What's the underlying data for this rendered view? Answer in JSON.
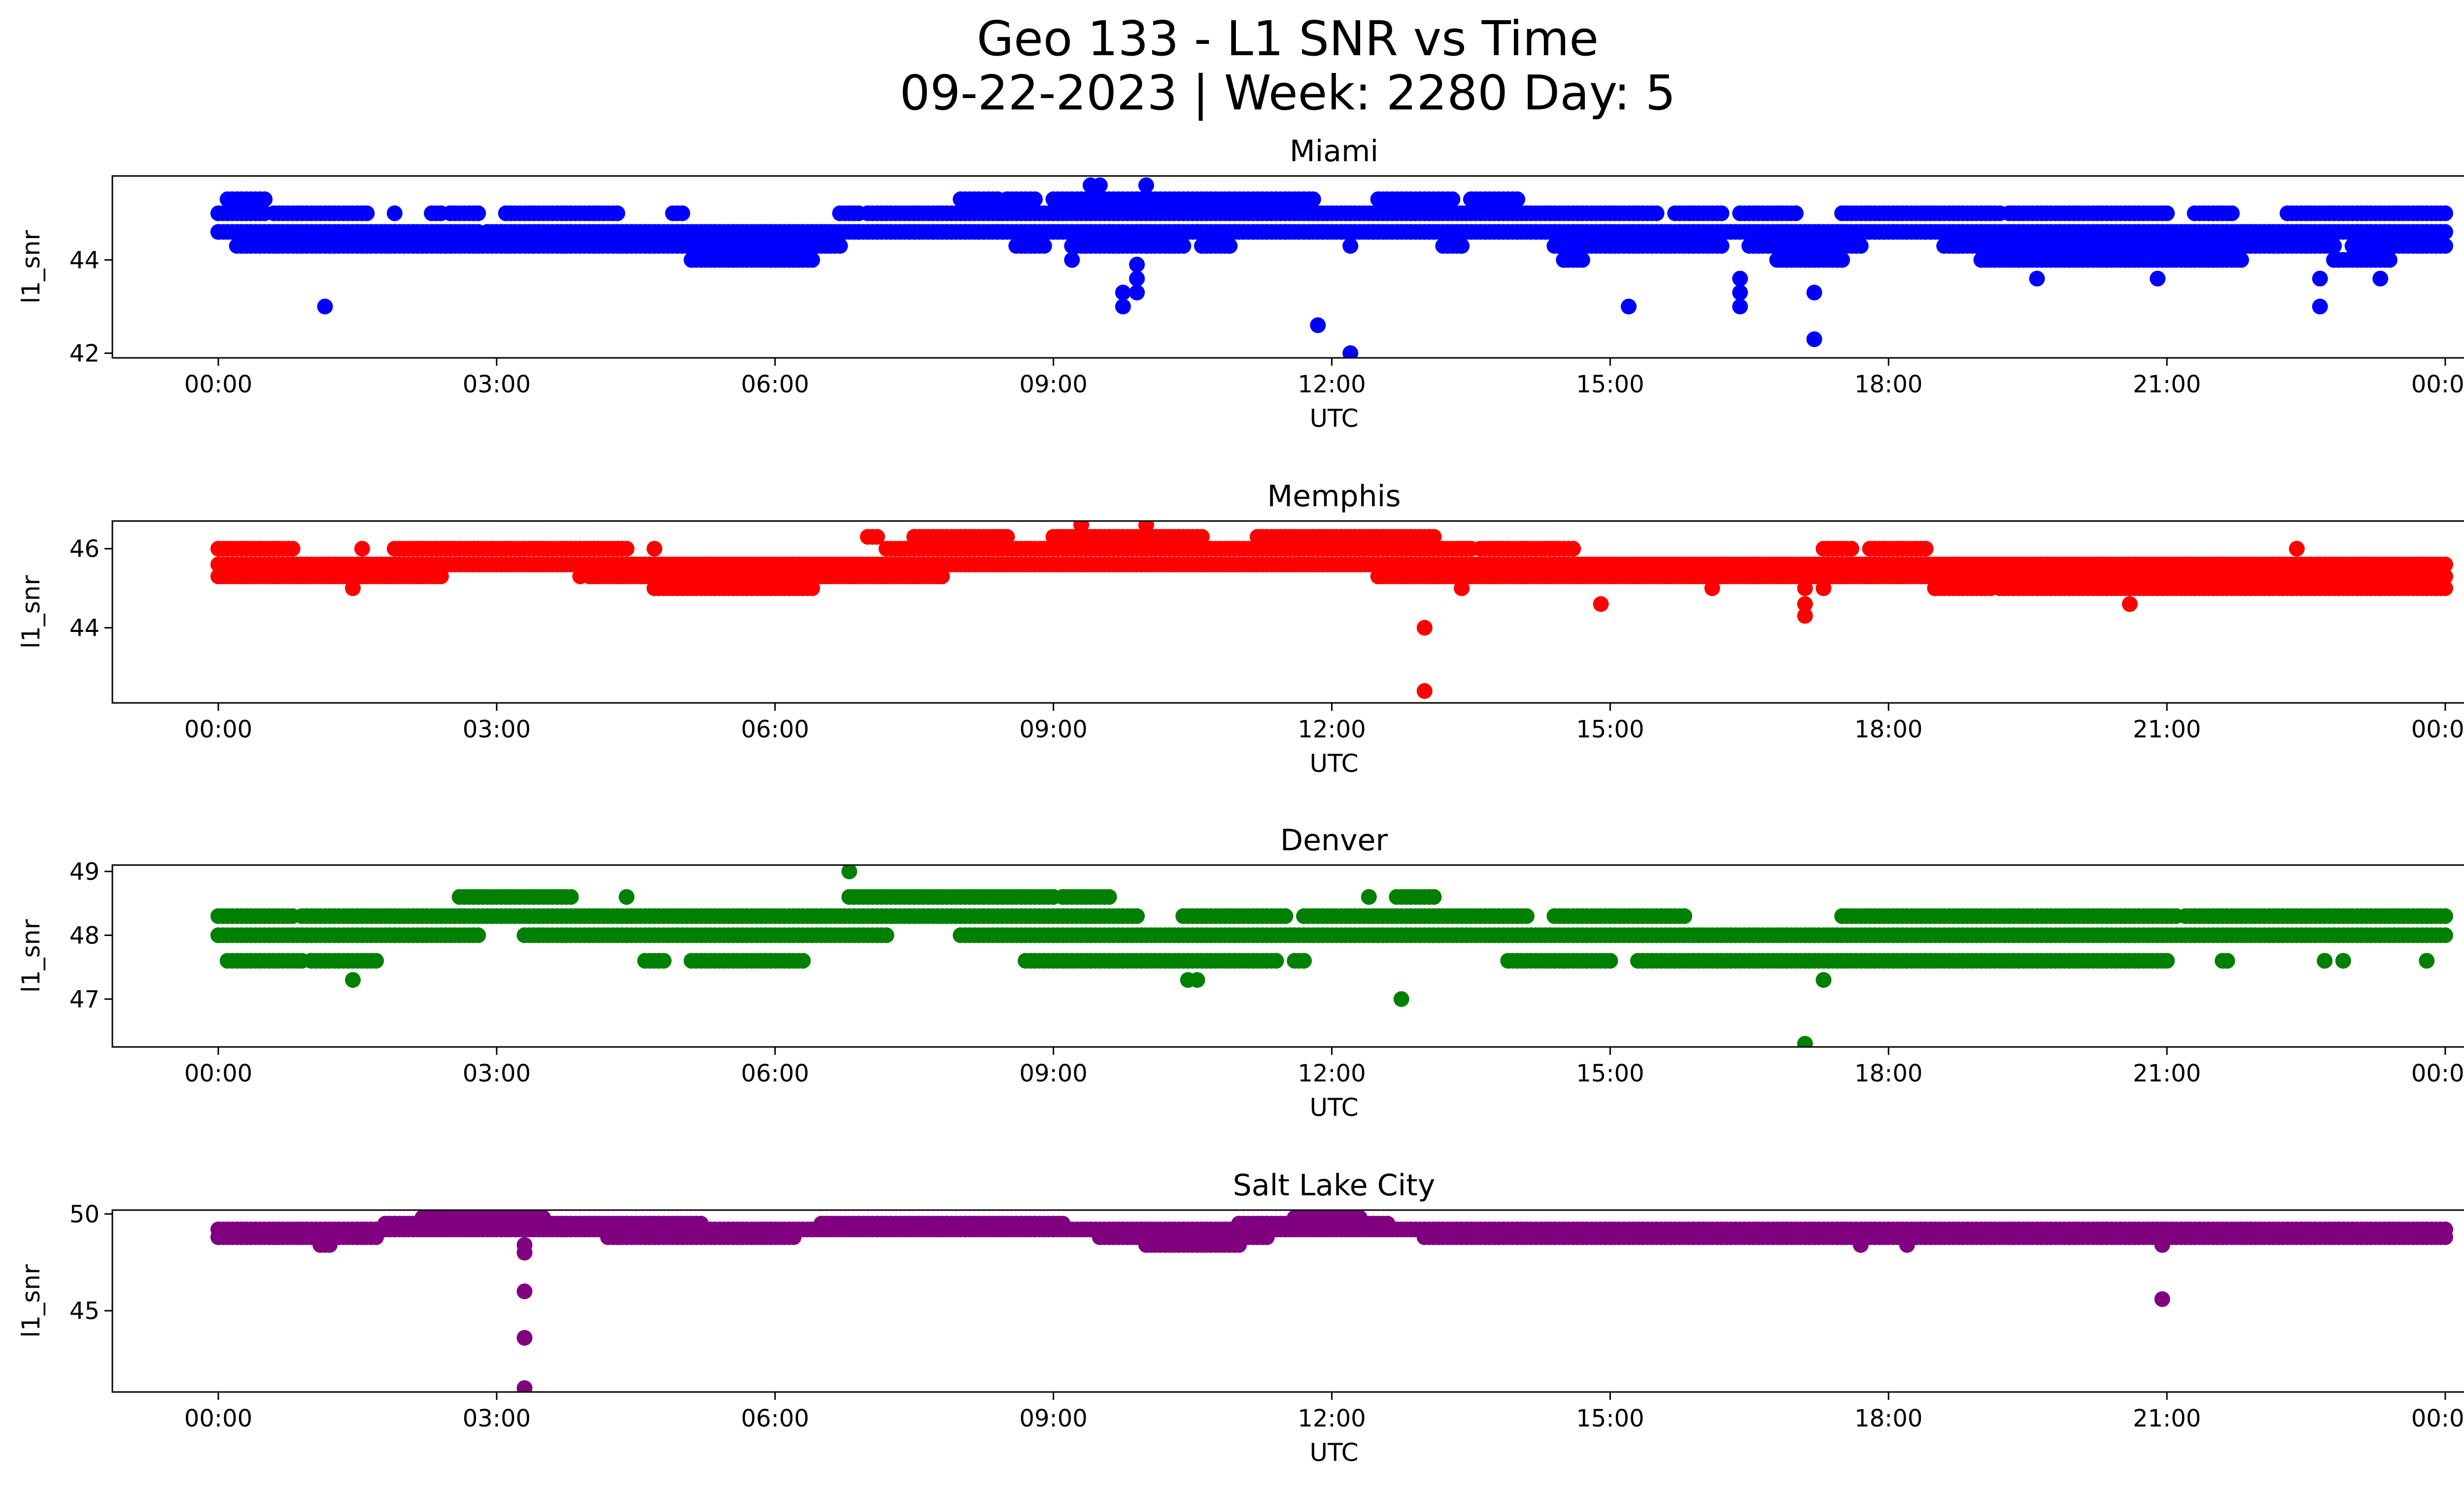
{
  "figure": {
    "title_line1": "Geo 133 - L1 SNR vs Time",
    "title_line2": "09-22-2023 | Week: 2280 Day: 5"
  },
  "chart_data": [
    {
      "type": "scatter",
      "title": "Miami",
      "xlabel": "UTC",
      "ylabel": "l1_snr",
      "color": "#0000ff",
      "x_unit": "hours (UTC)",
      "xlim": [
        0,
        24
      ],
      "ylim": [
        41.9,
        45.8
      ],
      "x_ticks": [
        "00:00",
        "03:00",
        "06:00",
        "09:00",
        "12:00",
        "15:00",
        "18:00",
        "21:00",
        "00:00"
      ],
      "y_ticks": [
        42,
        44
      ],
      "bands": [
        {
          "y": 45.0,
          "ranges": [
            [
              0.0,
              0.5
            ],
            [
              0.6,
              1.6
            ],
            [
              2.3,
              2.4
            ],
            [
              2.5,
              2.8
            ],
            [
              3.1,
              4.3
            ],
            [
              4.9,
              5.0
            ],
            [
              6.7,
              6.9
            ],
            [
              7.0,
              15.5
            ],
            [
              15.7,
              16.2
            ],
            [
              16.4,
              17.0
            ],
            [
              17.5,
              19.2
            ],
            [
              19.3,
              21.0
            ],
            [
              21.3,
              21.7
            ],
            [
              22.3,
              24.0
            ]
          ]
        },
        {
          "y": 44.6,
          "ranges": [
            [
              0.0,
              2.8
            ],
            [
              2.9,
              24.0
            ]
          ]
        },
        {
          "y": 44.3,
          "ranges": [
            [
              0.2,
              6.7
            ],
            [
              8.6,
              8.9
            ],
            [
              9.2,
              10.4
            ],
            [
              10.6,
              10.9
            ],
            [
              13.2,
              13.4
            ],
            [
              14.4,
              16.2
            ],
            [
              16.5,
              17.7
            ],
            [
              18.6,
              22.8
            ],
            [
              23.0,
              24.0
            ]
          ]
        },
        {
          "y": 44.0,
          "ranges": [
            [
              5.1,
              6.4
            ],
            [
              14.5,
              14.7
            ],
            [
              16.8,
              17.5
            ],
            [
              19.0,
              21.8
            ],
            [
              22.8,
              23.4
            ]
          ]
        },
        {
          "y": 45.3,
          "ranges": [
            [
              0.1,
              0.5
            ],
            [
              8.0,
              8.4
            ],
            [
              8.5,
              8.8
            ],
            [
              9.0,
              11.8
            ],
            [
              12.5,
              13.3
            ],
            [
              13.5,
              14.0
            ]
          ]
        }
      ],
      "points": [
        {
          "x": 1.15,
          "y": 43.0
        },
        {
          "x": 1.9,
          "y": 45.0
        },
        {
          "x": 9.2,
          "y": 44.0
        },
        {
          "x": 9.4,
          "y": 45.6
        },
        {
          "x": 9.5,
          "y": 45.6
        },
        {
          "x": 9.75,
          "y": 43.3
        },
        {
          "x": 9.75,
          "y": 43.0
        },
        {
          "x": 9.9,
          "y": 43.6
        },
        {
          "x": 9.9,
          "y": 43.3
        },
        {
          "x": 9.9,
          "y": 43.9
        },
        {
          "x": 10.0,
          "y": 45.6
        },
        {
          "x": 11.85,
          "y": 42.6
        },
        {
          "x": 12.2,
          "y": 42.0
        },
        {
          "x": 12.2,
          "y": 44.3
        },
        {
          "x": 15.2,
          "y": 43.0
        },
        {
          "x": 16.4,
          "y": 43.6
        },
        {
          "x": 16.4,
          "y": 43.3
        },
        {
          "x": 16.4,
          "y": 43.0
        },
        {
          "x": 17.2,
          "y": 42.3
        },
        {
          "x": 17.2,
          "y": 43.3
        },
        {
          "x": 19.6,
          "y": 43.6
        },
        {
          "x": 20.9,
          "y": 43.6
        },
        {
          "x": 22.65,
          "y": 43.6
        },
        {
          "x": 22.65,
          "y": 43.0
        },
        {
          "x": 23.3,
          "y": 43.6
        }
      ]
    },
    {
      "type": "scatter",
      "title": "Memphis",
      "xlabel": "UTC",
      "ylabel": "l1_snr",
      "color": "#ff0000",
      "x_unit": "hours (UTC)",
      "xlim": [
        0,
        24
      ],
      "ylim": [
        42.1,
        46.7
      ],
      "x_ticks": [
        "00:00",
        "03:00",
        "06:00",
        "09:00",
        "12:00",
        "15:00",
        "18:00",
        "21:00",
        "00:00"
      ],
      "y_ticks": [
        44,
        46
      ],
      "bands": [
        {
          "y": 45.6,
          "ranges": [
            [
              0.0,
              24.0
            ]
          ]
        },
        {
          "y": 45.3,
          "ranges": [
            [
              0.0,
              2.4
            ],
            [
              4.0,
              7.8
            ],
            [
              12.5,
              24.0
            ]
          ]
        },
        {
          "y": 46.0,
          "ranges": [
            [
              0.0,
              0.8
            ],
            [
              1.9,
              4.4
            ],
            [
              7.2,
              13.5
            ],
            [
              13.6,
              14.6
            ],
            [
              17.3,
              17.6
            ],
            [
              17.8,
              18.4
            ]
          ]
        },
        {
          "y": 45.0,
          "ranges": [
            [
              4.7,
              6.4
            ],
            [
              18.5,
              19.1
            ],
            [
              19.2,
              24.0
            ]
          ]
        },
        {
          "y": 46.3,
          "ranges": [
            [
              7.0,
              7.1
            ],
            [
              7.5,
              8.5
            ],
            [
              9.0,
              10.6
            ],
            [
              11.2,
              13.1
            ]
          ]
        }
      ],
      "points": [
        {
          "x": 1.45,
          "y": 45.0
        },
        {
          "x": 1.55,
          "y": 46.0
        },
        {
          "x": 3.9,
          "y": 45.3
        },
        {
          "x": 4.7,
          "y": 46.0
        },
        {
          "x": 9.3,
          "y": 46.6
        },
        {
          "x": 10.0,
          "y": 46.6
        },
        {
          "x": 13.0,
          "y": 44.0
        },
        {
          "x": 13.0,
          "y": 42.4
        },
        {
          "x": 13.4,
          "y": 45.0
        },
        {
          "x": 14.9,
          "y": 44.6
        },
        {
          "x": 16.1,
          "y": 45.0
        },
        {
          "x": 17.1,
          "y": 44.6
        },
        {
          "x": 17.1,
          "y": 44.3
        },
        {
          "x": 17.1,
          "y": 45.0
        },
        {
          "x": 17.3,
          "y": 45.0
        },
        {
          "x": 20.6,
          "y": 44.6
        },
        {
          "x": 22.4,
          "y": 46.0
        },
        {
          "x": 23.9,
          "y": 45.0
        }
      ]
    },
    {
      "type": "scatter",
      "title": "Denver",
      "xlabel": "UTC",
      "ylabel": "l1_snr",
      "color": "#008000",
      "x_unit": "hours (UTC)",
      "xlim": [
        0,
        24
      ],
      "ylim": [
        46.25,
        49.1
      ],
      "x_ticks": [
        "00:00",
        "03:00",
        "06:00",
        "09:00",
        "12:00",
        "15:00",
        "18:00",
        "21:00",
        "00:00"
      ],
      "y_ticks": [
        47,
        48,
        49
      ],
      "bands": [
        {
          "y": 48.0,
          "ranges": [
            [
              0.0,
              2.8
            ],
            [
              3.3,
              7.2
            ],
            [
              8.0,
              24.0
            ]
          ]
        },
        {
          "y": 48.3,
          "ranges": [
            [
              0.0,
              0.8
            ],
            [
              0.9,
              9.9
            ],
            [
              10.4,
              11.5
            ],
            [
              11.7,
              14.1
            ],
            [
              14.4,
              15.8
            ],
            [
              17.5,
              21.1
            ],
            [
              21.2,
              24.0
            ]
          ]
        },
        {
          "y": 47.6,
          "ranges": [
            [
              0.1,
              0.9
            ],
            [
              1.0,
              1.7
            ],
            [
              4.6,
              4.8
            ],
            [
              5.1,
              6.3
            ],
            [
              8.7,
              11.4
            ],
            [
              11.6,
              11.7
            ],
            [
              13.9,
              15.0
            ],
            [
              15.3,
              21.0
            ],
            [
              21.6,
              21.65
            ]
          ]
        },
        {
          "y": 48.6,
          "ranges": [
            [
              2.6,
              3.8
            ],
            [
              6.8,
              9.0
            ],
            [
              9.1,
              9.6
            ],
            [
              12.7,
              13.1
            ]
          ]
        }
      ],
      "points": [
        {
          "x": 1.45,
          "y": 47.3
        },
        {
          "x": 4.4,
          "y": 48.6
        },
        {
          "x": 6.8,
          "y": 49.0
        },
        {
          "x": 10.45,
          "y": 47.3
        },
        {
          "x": 10.55,
          "y": 47.3
        },
        {
          "x": 12.4,
          "y": 48.6
        },
        {
          "x": 12.75,
          "y": 47.0
        },
        {
          "x": 17.1,
          "y": 46.3
        },
        {
          "x": 17.3,
          "y": 47.3
        },
        {
          "x": 22.7,
          "y": 47.6
        },
        {
          "x": 22.9,
          "y": 47.6
        },
        {
          "x": 23.8,
          "y": 47.6
        }
      ]
    },
    {
      "type": "scatter",
      "title": "Salt Lake City",
      "xlabel": "UTC",
      "ylabel": "l1_snr",
      "color": "#800080",
      "x_unit": "hours (UTC)",
      "xlim": [
        0,
        24
      ],
      "ylim": [
        40.8,
        50.2
      ],
      "x_ticks": [
        "00:00",
        "03:00",
        "06:00",
        "09:00",
        "12:00",
        "15:00",
        "18:00",
        "21:00",
        "00:00"
      ],
      "y_ticks": [
        45,
        50
      ],
      "bands": [
        {
          "y": 49.2,
          "ranges": [
            [
              0.0,
              24.0
            ]
          ]
        },
        {
          "y": 48.8,
          "ranges": [
            [
              0.0,
              1.7
            ],
            [
              4.2,
              6.2
            ],
            [
              9.5,
              11.3
            ],
            [
              13.0,
              24.0
            ]
          ]
        },
        {
          "y": 49.5,
          "ranges": [
            [
              1.8,
              5.2
            ],
            [
              6.5,
              9.1
            ],
            [
              11.0,
              12.6
            ]
          ]
        },
        {
          "y": 48.4,
          "ranges": [
            [
              10.0,
              11.0
            ],
            [
              1.1,
              1.2
            ]
          ]
        },
        {
          "y": 49.8,
          "ranges": [
            [
              2.2,
              3.5
            ],
            [
              11.6,
              12.3
            ]
          ]
        }
      ],
      "points": [
        {
          "x": 3.3,
          "y": 48.4
        },
        {
          "x": 3.3,
          "y": 48.0
        },
        {
          "x": 3.3,
          "y": 46.0
        },
        {
          "x": 3.3,
          "y": 43.6
        },
        {
          "x": 3.3,
          "y": 41.0
        },
        {
          "x": 20.95,
          "y": 45.6
        },
        {
          "x": 20.95,
          "y": 48.4
        },
        {
          "x": 0.6,
          "y": 48.8
        },
        {
          "x": 17.7,
          "y": 48.4
        },
        {
          "x": 18.2,
          "y": 48.4
        }
      ]
    }
  ]
}
